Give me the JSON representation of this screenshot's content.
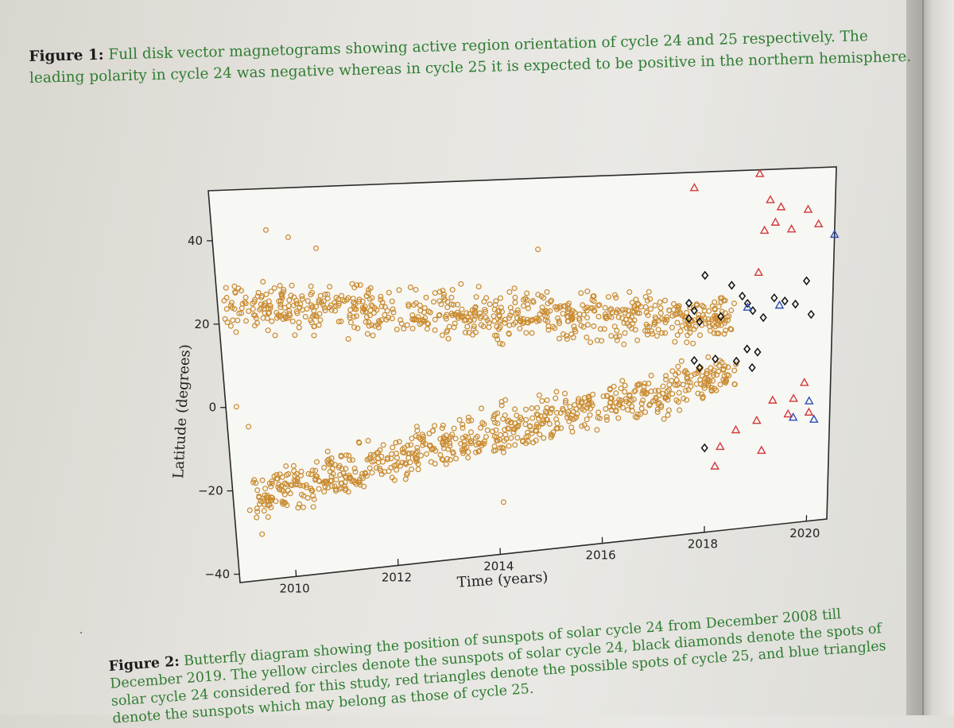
{
  "figure1": {
    "label": "Figure 1:",
    "text": "Full disk vector magnetograms showing active region orientation of cycle 24 and 25 respectively. The leading polarity in cycle 24 was negative whereas in cycle 25 it is expected to be positive in the northern hemisphere."
  },
  "figure2": {
    "label": "Figure 2:",
    "text": "Butterfly diagram showing the position of sunspots of solar cycle 24 from December 2008 till December 2019. The yellow circles denote the sunspots of solar cycle 24, black diamonds denote the spots of solar cycle 24 considered for this study, red triangles denote the possible spots of cycle 25, and blue triangles denote the sunspots which may belong as those of cycle 25."
  },
  "colors": {
    "cycle24": "#c98a2e",
    "considered": "#111111",
    "cycle25_red": "#d33a3a",
    "cycle25_blue": "#2b4fb3",
    "caption_text": "#2f7d33"
  },
  "chart_data": {
    "type": "scatter",
    "title": "",
    "xlabel": "Time (years)",
    "ylabel": "Latitude (degrees)",
    "xlim": [
      2008.9,
      2020.4
    ],
    "ylim": [
      -42,
      52
    ],
    "xticks": [
      2010,
      2012,
      2014,
      2016,
      2018,
      2020
    ],
    "yticks": [
      -40,
      -20,
      0,
      20,
      40
    ],
    "grid": false,
    "legend": "none",
    "series": [
      {
        "marker": "circle",
        "color": "#c98a2e",
        "count_estimate": 1400,
        "north_band": {
          "x_from": 2009.0,
          "x_to": 2018.6,
          "lat_center_from": 24,
          "lat_center_to": 13,
          "spread": 5
        },
        "south_band": {
          "x_from": 2009.3,
          "x_to": 2018.6,
          "lat_center_from": -22,
          "lat_center_to": -1,
          "spread": 5
        },
        "outliers": [
          [
            2009.9,
            42
          ],
          [
            2010.3,
            40
          ],
          [
            2010.8,
            37
          ],
          [
            2014.9,
            34
          ],
          [
            2009.1,
            0
          ],
          [
            2009.3,
            -5
          ],
          [
            2009.2,
            -25
          ],
          [
            2009.4,
            -31
          ],
          [
            2014.1,
            -29
          ]
        ]
      },
      {
        "marker": "diamond",
        "color": "#111111",
        "points": [
          [
            2017.7,
            18
          ],
          [
            2017.8,
            16
          ],
          [
            2017.9,
            13
          ],
          [
            2017.7,
            14
          ],
          [
            2018.0,
            25
          ],
          [
            2018.3,
            14
          ],
          [
            2018.5,
            22
          ],
          [
            2018.7,
            19
          ],
          [
            2018.8,
            17
          ],
          [
            2018.9,
            15
          ],
          [
            2019.1,
            13
          ],
          [
            2019.3,
            18
          ],
          [
            2019.5,
            17
          ],
          [
            2019.7,
            16
          ],
          [
            2019.9,
            22
          ],
          [
            2020.0,
            13
          ],
          [
            2017.8,
            3
          ],
          [
            2017.9,
            1
          ],
          [
            2018.2,
            3
          ],
          [
            2018.6,
            2
          ],
          [
            2018.8,
            5
          ],
          [
            2019.0,
            4
          ],
          [
            2018.9,
            0
          ],
          [
            2018.0,
            -20
          ]
        ]
      },
      {
        "marker": "triangle",
        "color": "#d33a3a",
        "points": [
          [
            2017.8,
            48
          ],
          [
            2019.0,
            51
          ],
          [
            2019.2,
            44
          ],
          [
            2019.4,
            42
          ],
          [
            2019.3,
            38
          ],
          [
            2019.6,
            36
          ],
          [
            2019.9,
            41
          ],
          [
            2019.1,
            36
          ],
          [
            2019.0,
            25
          ],
          [
            2020.1,
            37
          ],
          [
            2018.3,
            -20
          ],
          [
            2018.6,
            -16
          ],
          [
            2019.0,
            -14
          ],
          [
            2019.3,
            -9
          ],
          [
            2019.7,
            -9
          ],
          [
            2019.9,
            -5
          ],
          [
            2019.1,
            -22
          ],
          [
            2018.2,
            -25
          ],
          [
            2019.6,
            -13
          ],
          [
            2020.0,
            -13
          ]
        ]
      },
      {
        "marker": "triangle",
        "color": "#2b4fb3",
        "points": [
          [
            2020.4,
            34
          ],
          [
            2018.8,
            16
          ],
          [
            2019.7,
            -14
          ],
          [
            2020.0,
            -10
          ],
          [
            2020.1,
            -15
          ],
          [
            2019.4,
            16
          ]
        ]
      }
    ]
  }
}
